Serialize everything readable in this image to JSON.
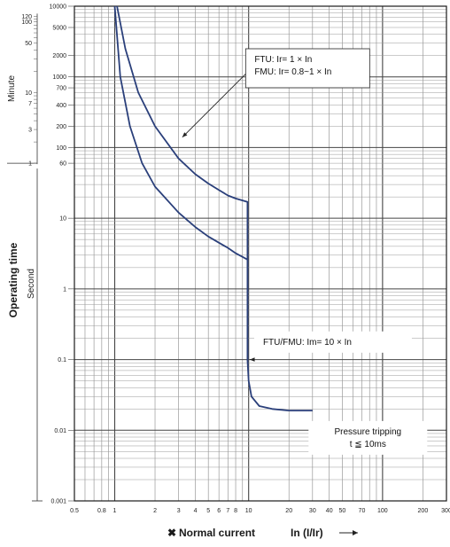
{
  "chart_data": {
    "type": "line",
    "title": "",
    "xlabel": "Normal current",
    "xlabel_marker": "✖",
    "xlabel_unit": "In (I/Ir)",
    "ylabel": "Operating time",
    "y_scale_labels": {
      "minute": "Minute",
      "second": "Second"
    },
    "x_scale": "log",
    "y_scale": "log",
    "xlim": [
      0.5,
      300
    ],
    "ylim": [
      0.001,
      10000
    ],
    "grid": true,
    "x_ticks": [
      "0.5",
      "0.8",
      "1",
      "2",
      "3",
      "4",
      "5",
      "6",
      "7",
      "8",
      "10",
      "20",
      "30",
      "40",
      "50",
      "70",
      "100",
      "200",
      "300"
    ],
    "x_tick_values": [
      0.5,
      0.8,
      1,
      2,
      3,
      4,
      5,
      6,
      7,
      8,
      10,
      20,
      30,
      40,
      50,
      70,
      100,
      200,
      300
    ],
    "y_ticks_second": [
      "10000",
      "5000",
      "2000",
      "1000",
      "700",
      "400",
      "200",
      "100",
      "60",
      "10",
      "1",
      "0.1",
      "0.01",
      "0.001"
    ],
    "y_tick_values_second": [
      10000,
      5000,
      2000,
      1000,
      700,
      400,
      200,
      100,
      60,
      10,
      1,
      0.1,
      0.01,
      0.001
    ],
    "y_ticks_minute": [
      "120",
      "100",
      "50",
      "10",
      "7",
      "3",
      "1"
    ],
    "y_tick_values_minute_in_seconds": [
      7200,
      6000,
      3000,
      600,
      420,
      180,
      60
    ],
    "series": [
      {
        "color": "#2a3f7a",
        "x": [
          1.04,
          1.2,
          1.5,
          2,
          3,
          4,
          5,
          6,
          7,
          8,
          9.8,
          9.8,
          10,
          10.5,
          12,
          15,
          20,
          30
        ],
        "y": [
          10000,
          2500,
          600,
          200,
          70,
          42,
          31,
          25,
          21,
          19,
          17,
          0.1,
          0.05,
          0.03,
          0.022,
          0.02,
          0.019,
          0.019
        ]
      },
      {
        "color": "#2a3f7a",
        "x": [
          1.0,
          1.1,
          1.3,
          1.6,
          2,
          3,
          4,
          5,
          6,
          7,
          8,
          9.8,
          9.8
        ],
        "y": [
          10000,
          1000,
          200,
          60,
          28,
          12,
          7.5,
          5.5,
          4.5,
          3.8,
          3.2,
          2.6,
          0.1
        ]
      }
    ],
    "annotations": [
      {
        "lines": [
          "FTU: Ir= 1 × In",
          "FMU: Ir= 0.8~1 × In"
        ]
      },
      {
        "lines": [
          "FTU/FMU: Im= 10 × In"
        ]
      },
      {
        "lines": [
          "Pressure tripping",
          "t ≦ 10ms"
        ]
      }
    ]
  }
}
